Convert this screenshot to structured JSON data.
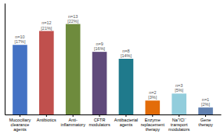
{
  "chart_data": {
    "type": "bar",
    "categories": [
      "Mucociliary\nclearance\nagents",
      "Antibiotics",
      "Anti-\ninflammatory",
      "CFTR\nmodulators",
      "Antibacterial\nagents",
      "Enzyme\nreplacement\ntherapy",
      "Na⁺/Cl⁻\ntransport\nmodulators",
      "Gene\ntherapy"
    ],
    "values": [
      10,
      12,
      13,
      9,
      8,
      2,
      3,
      1
    ],
    "value_labels": [
      "n=10\n[17%]",
      "n=12\n[21%]",
      "n=13\n[22%]",
      "n=9\n[16%]",
      "n=8\n[14%]",
      "n=2\n[3%]",
      "n=3\n[5%]",
      "n=1\n[2%]"
    ],
    "data_labels": true,
    "colors": [
      "#4472C4",
      "#C0504D",
      "#6E8B3D",
      "#604A7B",
      "#1F7A8C",
      "#E36C09",
      "#92CDDC",
      "#6080B0"
    ],
    "ylim": [
      0,
      16
    ],
    "tick_labels": "x",
    "grid": false
  }
}
